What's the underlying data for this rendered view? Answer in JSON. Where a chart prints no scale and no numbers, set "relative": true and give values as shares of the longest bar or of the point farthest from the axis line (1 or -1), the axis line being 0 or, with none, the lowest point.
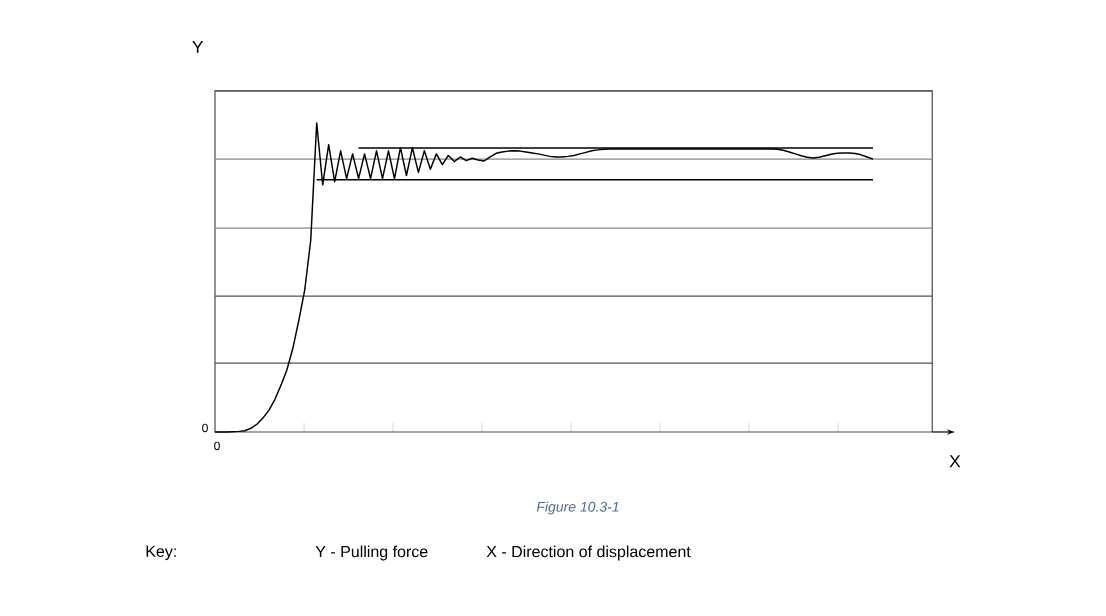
{
  "chart_data": {
    "type": "line",
    "relative": true,
    "xlabel": "X",
    "ylabel": "Y",
    "categories": [
      null,
      null,
      null,
      null,
      null,
      null,
      null,
      null,
      null,
      null,
      null,
      null,
      null,
      null,
      null,
      null,
      null,
      null,
      null,
      null,
      null,
      null,
      null,
      null,
      null,
      null,
      null,
      null,
      null,
      null,
      null,
      null,
      null,
      null,
      null,
      null,
      null,
      null,
      null,
      null,
      null,
      null,
      null,
      null,
      null,
      null,
      null,
      null,
      null,
      null,
      null,
      null,
      null,
      null,
      null,
      null,
      null,
      null,
      null,
      null,
      null,
      null,
      null,
      null,
      null,
      null,
      null,
      null,
      null,
      null,
      null,
      null,
      null,
      null,
      null,
      null,
      null,
      null,
      null,
      null,
      null,
      null,
      null,
      null,
      null,
      null,
      null,
      null,
      null,
      null,
      null,
      null,
      null,
      null,
      null,
      null,
      null,
      null,
      null,
      null,
      null,
      null,
      null,
      null,
      null,
      null,
      null,
      null,
      null,
      null,
      null
    ],
    "series": [
      {
        "color": "#000000",
        "values": [
          0,
          0,
          0,
          0.001,
          0.002,
          0.004,
          0.012,
          0.025,
          0.045,
          0.07,
          0.105,
          0.15,
          0.2,
          0.27,
          0.36,
          0.46,
          0.62,
          1.0,
          0.8,
          0.93,
          0.81,
          0.91,
          0.82,
          0.9,
          0.82,
          0.9,
          0.82,
          0.91,
          0.82,
          0.91,
          0.82,
          0.92,
          0.83,
          0.92,
          0.84,
          0.91,
          0.85,
          0.9,
          0.865,
          0.895,
          0.875,
          0.89,
          0.878,
          0.886,
          0.88,
          0.877,
          0.89,
          0.902,
          0.906,
          0.909,
          0.91,
          0.909,
          0.906,
          0.903,
          0.9,
          0.896,
          0.892,
          0.89,
          0.89,
          0.892,
          0.895,
          0.9,
          0.905,
          0.91,
          0.913,
          0.915,
          0.916,
          0.916,
          0.916,
          0.916,
          0.916,
          0.916,
          0.916,
          0.916,
          0.916,
          0.916,
          0.916,
          0.916,
          0.916,
          0.916,
          0.916,
          0.916,
          0.916,
          0.916,
          0.916,
          0.916,
          0.916,
          0.916,
          0.916,
          0.916,
          0.916,
          0.916,
          0.916,
          0.916,
          0.915,
          0.912,
          0.906,
          0.9,
          0.894,
          0.889,
          0.887,
          0.889,
          0.894,
          0.899,
          0.902,
          0.903,
          0.903,
          0.901,
          0.897,
          0.89,
          0.883
        ]
      },
      {
        "color": "#000000",
        "values": [
          null,
          null,
          null,
          null,
          null,
          null,
          null,
          null,
          null,
          null,
          null,
          null,
          null,
          null,
          null,
          null,
          null,
          null,
          null,
          null,
          null,
          null,
          null,
          null,
          0.919,
          0.919,
          0.919,
          0.919,
          0.919,
          0.919,
          0.919,
          0.919,
          0.919,
          0.919,
          0.919,
          0.919,
          0.919,
          0.919,
          0.919,
          0.919,
          0.919,
          0.919,
          0.919,
          0.919,
          0.919,
          0.919,
          0.919,
          0.919,
          0.919,
          0.919,
          0.919,
          0.919,
          0.919,
          0.919,
          0.919,
          0.919,
          0.919,
          0.919,
          0.919,
          0.919,
          0.919,
          0.919,
          0.919,
          0.919,
          0.919,
          0.919,
          0.919,
          0.919,
          0.919,
          0.919,
          0.919,
          0.919,
          0.919,
          0.919,
          0.919,
          0.919,
          0.919,
          0.919,
          0.919,
          0.919,
          0.919,
          0.919,
          0.919,
          0.919,
          0.919,
          0.919,
          0.919,
          0.919,
          0.919,
          0.919,
          0.919,
          0.919,
          0.919,
          0.919,
          0.919,
          0.919,
          0.919,
          0.919,
          0.919,
          0.919,
          0.919,
          0.919,
          0.919,
          0.919,
          0.919,
          0.919,
          0.919,
          0.919,
          0.919,
          0.919,
          0.919
        ]
      },
      {
        "color": "#000000",
        "values": [
          null,
          null,
          null,
          null,
          null,
          null,
          null,
          null,
          null,
          null,
          null,
          null,
          null,
          null,
          null,
          null,
          null,
          0.816,
          0.816,
          0.816,
          0.816,
          0.816,
          0.816,
          0.816,
          0.816,
          0.816,
          0.816,
          0.816,
          0.816,
          0.816,
          0.816,
          0.816,
          0.816,
          0.816,
          0.816,
          0.816,
          0.816,
          0.816,
          0.816,
          0.816,
          0.816,
          0.816,
          0.816,
          0.816,
          0.816,
          0.816,
          0.816,
          0.816,
          0.816,
          0.816,
          0.816,
          0.816,
          0.816,
          0.816,
          0.816,
          0.816,
          0.816,
          0.816,
          0.816,
          0.816,
          0.816,
          0.816,
          0.816,
          0.816,
          0.816,
          0.816,
          0.816,
          0.816,
          0.816,
          0.816,
          0.816,
          0.816,
          0.816,
          0.816,
          0.816,
          0.816,
          0.816,
          0.816,
          0.816,
          0.816,
          0.816,
          0.816,
          0.816,
          0.816,
          0.816,
          0.816,
          0.816,
          0.816,
          0.816,
          0.816,
          0.816,
          0.816,
          0.816,
          0.816,
          0.816,
          0.816,
          0.816,
          0.816,
          0.816,
          0.816,
          0.816,
          0.816,
          0.816,
          0.816,
          0.816,
          0.816,
          0.816,
          0.816,
          0.816,
          0.816,
          0.816
        ]
      }
    ],
    "ref_lines": [
      {
        "axis": "y",
        "value": 0.223,
        "color": "#555555"
      },
      {
        "axis": "y",
        "value": 0.44,
        "color": "#555555"
      },
      {
        "axis": "y",
        "value": 0.66,
        "color": "#888888"
      },
      {
        "axis": "y",
        "value": 0.883,
        "color": "#888888"
      },
      {
        "axis": "y",
        "value": 1.104,
        "color": "#555555"
      }
    ],
    "annotations": [
      "0",
      "0",
      "Figure 10.3-1",
      "Key:",
      "Y - Pulling force",
      "X - Direction of displacement"
    ]
  }
}
